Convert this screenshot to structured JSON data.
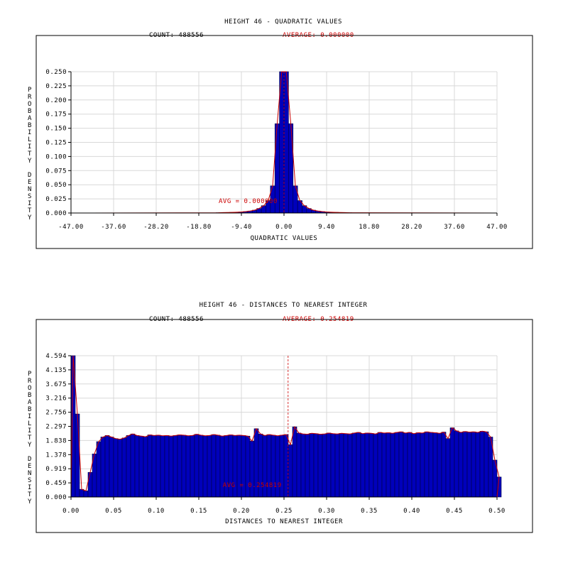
{
  "colors": {
    "bar_fill": "#0000bb",
    "bar_stroke": "#000044",
    "curve": "#cc0000",
    "grid": "#d8d8d8",
    "annotation": "#cc0000",
    "frame": "#000000"
  },
  "chart_data": [
    {
      "type": "bar",
      "title": "HEIGHT 46 - QUADRATIC VALUES",
      "count_label": "COUNT: 488556",
      "average_label": "AVERAGE: 0.000000",
      "avg_annotation": "AVG = 0.000000",
      "avg_value": 0.0,
      "xlabel": "QUADRATIC VALUES",
      "ylabel_chars": [
        "P",
        "R",
        "O",
        "B",
        "A",
        "B",
        "I",
        "L",
        "I",
        "T",
        "Y",
        "",
        "D",
        "E",
        "N",
        "S",
        "I",
        "T",
        "Y"
      ],
      "xlim": [
        -47,
        47
      ],
      "ylim": [
        0,
        0.25
      ],
      "x_ticks": [
        "-47.00",
        "-37.60",
        "-28.20",
        "-18.80",
        "-9.40",
        "0.00",
        "9.40",
        "18.80",
        "28.20",
        "37.60",
        "47.00"
      ],
      "y_ticks": [
        "0.000",
        "0.025",
        "0.050",
        "0.075",
        "0.100",
        "0.125",
        "0.150",
        "0.175",
        "0.200",
        "0.225",
        "0.250"
      ],
      "bin_start": -15,
      "bin_width": 1,
      "values": [
        0.0005,
        0.0007,
        0.0009,
        0.0011,
        0.0014,
        0.0018,
        0.0025,
        0.0035,
        0.005,
        0.008,
        0.013,
        0.022,
        0.048,
        0.158,
        0.25,
        0.25,
        0.158,
        0.048,
        0.022,
        0.013,
        0.008,
        0.005,
        0.0035,
        0.0025,
        0.0018,
        0.0014,
        0.0011,
        0.0009,
        0.0007,
        0.0005
      ],
      "grid": true
    },
    {
      "type": "bar",
      "title": "HEIGHT 46 - DISTANCES TO NEAREST INTEGER",
      "count_label": "COUNT: 488556",
      "average_label": "AVERAGE: 0.254819",
      "avg_annotation": "AVG = 0.254819",
      "avg_value": 0.254819,
      "xlabel": "DISTANCES TO NEAREST INTEGER",
      "ylabel_chars": [
        "P",
        "R",
        "O",
        "B",
        "A",
        "B",
        "I",
        "L",
        "I",
        "T",
        "Y",
        "",
        "D",
        "E",
        "N",
        "S",
        "I",
        "T",
        "Y"
      ],
      "xlim": [
        0,
        0.5
      ],
      "ylim": [
        0,
        4.594
      ],
      "x_ticks": [
        "0.00",
        "0.05",
        "0.10",
        "0.15",
        "0.20",
        "0.25",
        "0.30",
        "0.35",
        "0.40",
        "0.45",
        "0.50"
      ],
      "y_ticks": [
        "0.000",
        "0.459",
        "0.919",
        "1.378",
        "1.838",
        "2.297",
        "2.756",
        "3.216",
        "3.675",
        "4.135",
        "4.594"
      ],
      "bin_start": 0,
      "bin_width": 0.005,
      "values": [
        4.594,
        2.7,
        0.25,
        0.2,
        0.8,
        1.4,
        1.8,
        1.95,
        2.0,
        1.95,
        1.9,
        1.88,
        1.92,
        2.0,
        2.05,
        2.0,
        1.98,
        1.96,
        2.02,
        2.0,
        2.01,
        1.99,
        2.0,
        1.98,
        2.0,
        2.02,
        2.01,
        1.99,
        2.0,
        2.04,
        2.01,
        1.99,
        2.0,
        2.03,
        2.01,
        1.98,
        2.0,
        2.02,
        2.0,
        2.01,
        2.0,
        1.98,
        1.82,
        2.22,
        2.05,
        2.0,
        2.03,
        2.01,
        1.99,
        2.01,
        2.03,
        1.7,
        2.28,
        2.08,
        2.05,
        2.04,
        2.07,
        2.06,
        2.04,
        2.05,
        2.08,
        2.06,
        2.05,
        2.07,
        2.06,
        2.05,
        2.08,
        2.1,
        2.06,
        2.08,
        2.07,
        2.05,
        2.1,
        2.08,
        2.09,
        2.07,
        2.1,
        2.12,
        2.08,
        2.1,
        2.06,
        2.09,
        2.08,
        2.12,
        2.1,
        2.09,
        2.07,
        2.11,
        1.9,
        2.25,
        2.15,
        2.1,
        2.13,
        2.11,
        2.12,
        2.1,
        2.14,
        2.12,
        1.95,
        1.2,
        0.65
      ],
      "grid": true
    }
  ]
}
